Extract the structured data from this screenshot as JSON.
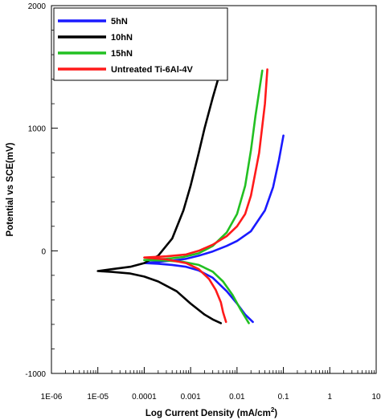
{
  "chart_data": {
    "type": "line",
    "xlabel": "Log Current Density (mA/cm2)",
    "xlabel_main": "Log Current Density (mA/cm",
    "xlabel_sup": "2",
    "xlabel_close": ")",
    "ylabel": "Potential vs SCE(mV)",
    "x_scale": "log",
    "xlim": [
      1e-06,
      10
    ],
    "ylim": [
      -1000,
      2000
    ],
    "x_ticks": [
      {
        "value": 1e-06,
        "label": "1E-06"
      },
      {
        "value": 1e-05,
        "label": "1E-05"
      },
      {
        "value": 0.0001,
        "label": "0.0001"
      },
      {
        "value": 0.001,
        "label": "0.001"
      },
      {
        "value": 0.01,
        "label": "0.01"
      },
      {
        "value": 0.1,
        "label": "0.1"
      },
      {
        "value": 1,
        "label": "1"
      },
      {
        "value": 10,
        "label": "10"
      }
    ],
    "y_ticks": [
      {
        "value": -1000,
        "label": "-1000"
      },
      {
        "value": 0,
        "label": "0"
      },
      {
        "value": 1000,
        "label": "1000"
      },
      {
        "value": 2000,
        "label": "2000"
      }
    ],
    "grid": false,
    "legend_position": "top-left",
    "series": [
      {
        "name": "5hN",
        "color": "#1a1aff",
        "x": [
          0.022,
          0.015,
          0.01,
          0.006,
          0.003,
          0.0015,
          0.0008,
          0.0004,
          0.0002,
          0.0001,
          0.0002,
          0.0004,
          0.0008,
          0.0015,
          0.003,
          0.006,
          0.01,
          0.02,
          0.04,
          0.06,
          0.08,
          0.1
        ],
        "y": [
          -580,
          -520,
          -430,
          -330,
          -220,
          -160,
          -130,
          -115,
          -105,
          -100,
          -90,
          -80,
          -65,
          -40,
          -5,
          40,
          80,
          160,
          330,
          520,
          740,
          940
        ]
      },
      {
        "name": "10hN",
        "color": "#000000",
        "x": [
          0.0045,
          0.003,
          0.002,
          0.001,
          0.0005,
          0.0002,
          0.0001,
          5e-05,
          2e-05,
          1e-05,
          2e-05,
          5e-05,
          0.0001,
          0.0002,
          0.0004,
          0.0007,
          0.001,
          0.0015,
          0.002,
          0.003,
          0.0045
        ],
        "y": [
          -590,
          -560,
          -520,
          -430,
          -330,
          -250,
          -210,
          -185,
          -172,
          -165,
          -150,
          -130,
          -100,
          -40,
          100,
          330,
          530,
          800,
          1000,
          1250,
          1480
        ]
      },
      {
        "name": "15hN",
        "color": "#22c022",
        "x": [
          0.018,
          0.012,
          0.008,
          0.005,
          0.003,
          0.0015,
          0.0007,
          0.0003,
          0.0001,
          0.0003,
          0.0007,
          0.0015,
          0.003,
          0.006,
          0.01,
          0.015,
          0.02,
          0.025,
          0.03,
          0.035
        ],
        "y": [
          -590,
          -480,
          -360,
          -250,
          -170,
          -115,
          -90,
          -80,
          -75,
          -65,
          -50,
          -20,
          40,
          150,
          300,
          530,
          820,
          1100,
          1300,
          1470
        ]
      },
      {
        "name": "Untreated Ti-6Al-4V",
        "color": "#ff1a1a",
        "x": [
          0.0058,
          0.005,
          0.0045,
          0.0035,
          0.0025,
          0.0015,
          0.0008,
          0.0003,
          0.0001,
          0.0003,
          0.0008,
          0.0015,
          0.003,
          0.006,
          0.01,
          0.015,
          0.02,
          0.03,
          0.04,
          0.045
        ],
        "y": [
          -580,
          -500,
          -420,
          -320,
          -230,
          -150,
          -100,
          -70,
          -55,
          -45,
          -30,
          0,
          50,
          120,
          200,
          300,
          450,
          800,
          1200,
          1480
        ]
      }
    ]
  }
}
